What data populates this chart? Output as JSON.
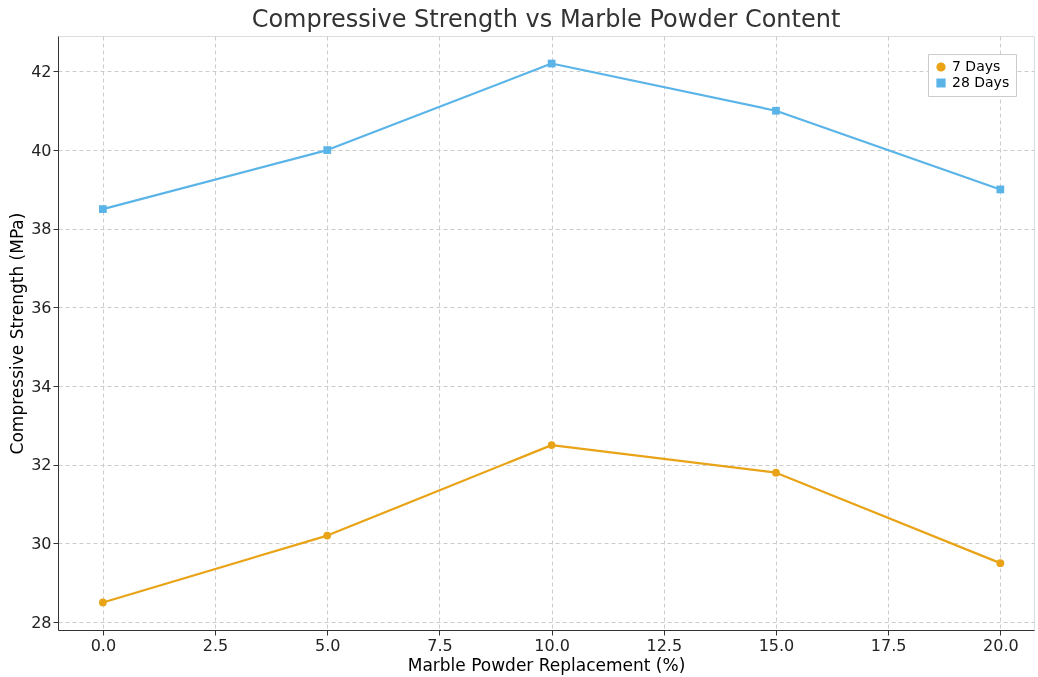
{
  "chart_data": {
    "type": "line",
    "title": "Compressive Strength vs Marble Powder Content",
    "xlabel": "Marble Powder Replacement (%)",
    "ylabel": "Compressive Strength (MPa)",
    "x": [
      0,
      5,
      10,
      15,
      20
    ],
    "series": [
      {
        "name": "7 Days",
        "color": "#e8a317",
        "marker": "circle",
        "values": [
          28.5,
          30.2,
          32.5,
          31.8,
          29.5
        ]
      },
      {
        "name": "28 Days",
        "color": "#5ab4e8",
        "marker": "square",
        "values": [
          38.5,
          40.0,
          42.2,
          41.0,
          39.0
        ]
      }
    ],
    "xlim": [
      -1,
      20.75
    ],
    "ylim": [
      27.8,
      42.9
    ],
    "xticks": [
      {
        "value": 0,
        "label": "0.0"
      },
      {
        "value": 2.5,
        "label": "2.5"
      },
      {
        "value": 5,
        "label": "5.0"
      },
      {
        "value": 7.5,
        "label": "7.5"
      },
      {
        "value": 10,
        "label": "10.0"
      },
      {
        "value": 12.5,
        "label": "12.5"
      },
      {
        "value": 15,
        "label": "15.0"
      },
      {
        "value": 17.5,
        "label": "17.5"
      },
      {
        "value": 20,
        "label": "20.0"
      }
    ],
    "yticks": [
      28,
      30,
      32,
      34,
      36,
      38,
      40,
      42
    ],
    "grid": true,
    "legend": "top right",
    "line_style": "solid"
  }
}
